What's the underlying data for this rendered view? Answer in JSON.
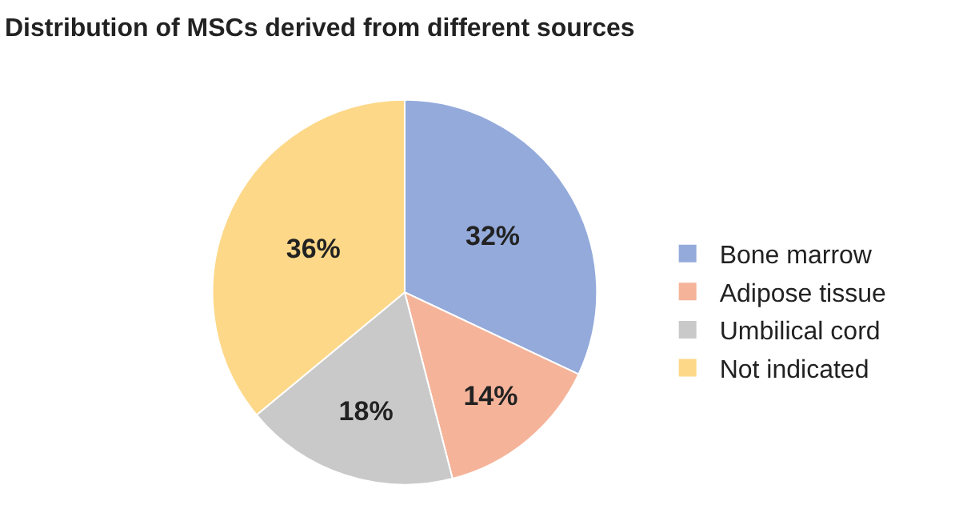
{
  "chart_data": {
    "type": "pie",
    "title": "Distribution of MSCs derived from different sources",
    "categories": [
      "Bone marrow",
      "Adipose tissue",
      "Umbilical cord",
      "Not indicated"
    ],
    "values": [
      32,
      14,
      18,
      36
    ],
    "colors": [
      "#94aadb",
      "#f5b49a",
      "#c9c9c9",
      "#fdd888"
    ],
    "value_labels": [
      "32%",
      "14%",
      "18%",
      "36%"
    ],
    "legend": "right"
  }
}
